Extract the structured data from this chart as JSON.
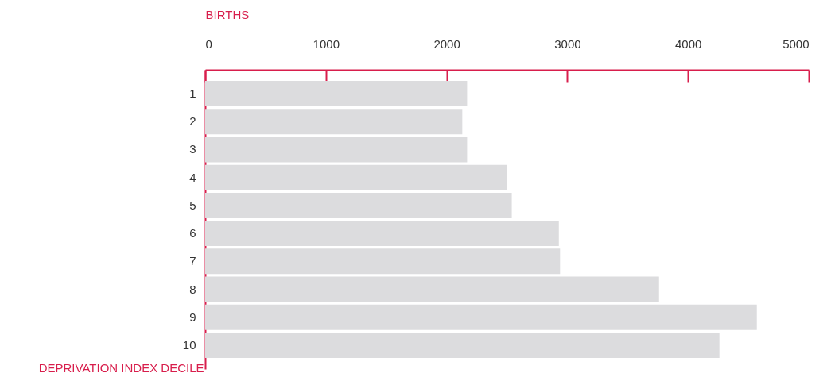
{
  "chart_data": {
    "type": "bar",
    "orientation": "horizontal",
    "xlabel": "BIRTHS",
    "ylabel": "DEPRIVATION INDEX DECILE",
    "categories": [
      "1",
      "2",
      "3",
      "4",
      "5",
      "6",
      "7",
      "8",
      "9",
      "10"
    ],
    "values": [
      2170,
      2130,
      2170,
      2500,
      2540,
      2930,
      2940,
      3760,
      4570,
      4260
    ],
    "color": "#dcdcde",
    "xlim": [
      0,
      5000
    ],
    "xticks": [
      0,
      1000,
      2000,
      3000,
      4000,
      5000
    ],
    "grid": false
  }
}
